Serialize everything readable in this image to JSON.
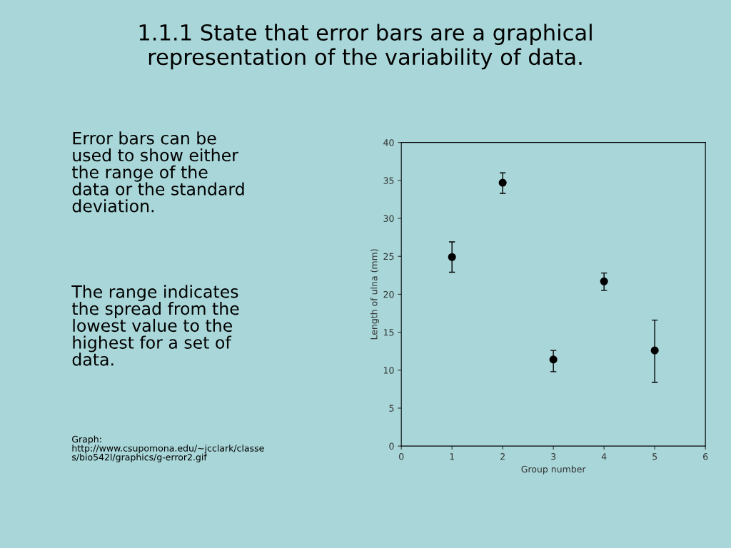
{
  "chart_data": {
    "type": "scatter",
    "title": "1.1.1 State that error bars are a graphical\nrepresentation of the variability of data.",
    "xlabel": "Group number",
    "ylabel": "Length of ulna (mm)",
    "x": [
      1,
      2,
      3,
      4,
      5
    ],
    "values": [
      24.9,
      34.7,
      11.4,
      21.7,
      12.6
    ],
    "errors": [
      [
        22.9,
        26.9
      ],
      [
        33.3,
        36.0
      ],
      [
        9.8,
        12.6
      ],
      [
        20.5,
        22.8
      ],
      [
        8.4,
        16.6
      ]
    ],
    "color": "#000000",
    "marker": "circle",
    "xlim": [
      0,
      6
    ],
    "xticks": [
      0,
      1,
      2,
      3,
      4,
      5,
      6
    ],
    "ylim": [
      0,
      40
    ],
    "yticks": [
      0,
      5,
      10,
      15,
      20,
      25,
      30,
      35,
      40
    ],
    "grid": false,
    "legend": false,
    "annotations": [
      "Error bars can be\nused to show either\nthe range of the\ndata or the standard\ndeviation.",
      "The range indicates\nthe spread from the\nlowest value to the\nhighest for a set of\ndata.",
      "Graph:\nhttp://www.csupomona.edu/~jcclark/classe\ns/bio542l/graphics/g-error2.gif"
    ]
  }
}
